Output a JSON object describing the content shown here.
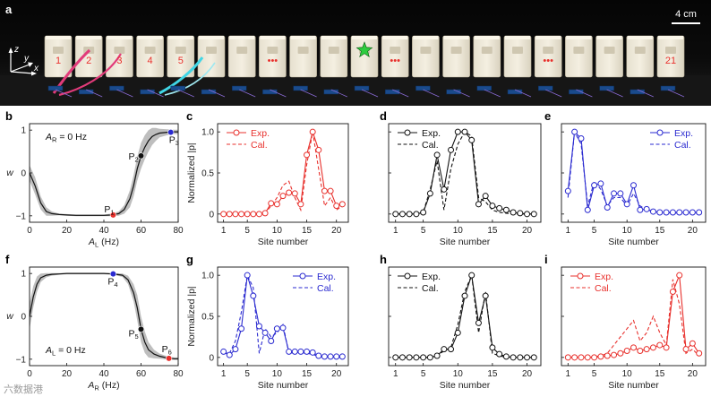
{
  "photo": {
    "panel_label": "a",
    "scale_label": "4 cm",
    "axis_z": "z",
    "axis_y": "y",
    "axis_x": "x",
    "block_labels": [
      "1",
      "2",
      "3",
      "4",
      "5",
      "•••",
      "•••",
      "•••",
      "21"
    ],
    "star_color": "#2ecc40"
  },
  "colors": {
    "red": "#e8302c",
    "blue": "#2a2ad0",
    "black": "#111111",
    "gray": "#b3b3b3"
  },
  "watermark": "六数据港",
  "chart_data": [
    {
      "id": "b",
      "type": "line",
      "label": "b",
      "xlabel_main": "A",
      "xlabel_sub": "L",
      "xlabel_unit": " (Hz)",
      "ylabel": "w",
      "xlim": [
        0,
        80
      ],
      "ylim": [
        -1.15,
        1.15
      ],
      "xticks": [
        "0",
        "20",
        "40",
        "60",
        "80"
      ],
      "xtick_values": [
        0,
        20,
        40,
        60,
        80
      ],
      "yticks": [
        "1",
        "0",
        "−1"
      ],
      "ytick_values": [
        1,
        0,
        -1
      ],
      "annotation_main": "A",
      "annotation_sub": "R",
      "annotation_tail": " = 0 Hz",
      "x": [
        0,
        3,
        6,
        9,
        12,
        16,
        20,
        25,
        30,
        35,
        40,
        44,
        48,
        51,
        54,
        56,
        58,
        60,
        62,
        64,
        66,
        68,
        70,
        74,
        78,
        80
      ],
      "y": [
        0,
        -0.3,
        -0.7,
        -0.9,
        -0.95,
        -0.97,
        -0.98,
        -0.99,
        -0.99,
        -0.99,
        -0.99,
        -0.98,
        -0.95,
        -0.85,
        -0.6,
        -0.3,
        0.1,
        0.4,
        0.6,
        0.75,
        0.85,
        0.9,
        0.93,
        0.95,
        0.96,
        0.96
      ],
      "band": [
        0.18,
        0.2,
        0.15,
        0.1,
        0.05,
        0.02,
        0.02,
        0.02,
        0.02,
        0.02,
        0.02,
        0.03,
        0.05,
        0.1,
        0.2,
        0.25,
        0.28,
        0.3,
        0.28,
        0.25,
        0.2,
        0.15,
        0.1,
        0.07,
        0.05,
        0.05
      ],
      "points": [
        {
          "name": "P",
          "sub": "1",
          "x": 45,
          "y": -0.98,
          "color": "red"
        },
        {
          "name": "P",
          "sub": "2",
          "x": 60,
          "y": 0.4,
          "color": "black"
        },
        {
          "name": "P",
          "sub": "3",
          "x": 76,
          "y": 0.95,
          "color": "blue"
        }
      ]
    },
    {
      "id": "f",
      "type": "line",
      "label": "f",
      "xlabel_main": "A",
      "xlabel_sub": "R",
      "xlabel_unit": " (Hz)",
      "ylabel": "w",
      "xlim": [
        0,
        80
      ],
      "ylim": [
        -1.15,
        1.15
      ],
      "xticks": [
        "0",
        "20",
        "40",
        "60",
        "80"
      ],
      "xtick_values": [
        0,
        20,
        40,
        60,
        80
      ],
      "yticks": [
        "1",
        "0",
        "−1"
      ],
      "ytick_values": [
        1,
        0,
        -1
      ],
      "annotation_main": "A",
      "annotation_sub": "L",
      "annotation_tail": " = 0 Hz",
      "x": [
        0,
        2,
        4,
        6,
        9,
        12,
        16,
        20,
        25,
        30,
        35,
        40,
        45,
        50,
        53,
        56,
        58,
        60,
        62,
        64,
        67,
        70,
        74,
        78,
        80
      ],
      "y": [
        0,
        0.45,
        0.75,
        0.9,
        0.96,
        0.98,
        0.99,
        1,
        1,
        1,
        1,
        1,
        0.99,
        0.96,
        0.85,
        0.55,
        0.2,
        -0.3,
        -0.6,
        -0.78,
        -0.88,
        -0.93,
        -0.97,
        -0.99,
        -0.99
      ],
      "band": [
        0.3,
        0.25,
        0.18,
        0.1,
        0.05,
        0.03,
        0.02,
        0.02,
        0.02,
        0.02,
        0.02,
        0.02,
        0.02,
        0.04,
        0.1,
        0.2,
        0.3,
        0.3,
        0.25,
        0.18,
        0.1,
        0.06,
        0.04,
        0.03,
        0.03
      ],
      "points": [
        {
          "name": "P",
          "sub": "4",
          "x": 45,
          "y": 0.99,
          "color": "blue"
        },
        {
          "name": "P",
          "sub": "5",
          "x": 60,
          "y": -0.3,
          "color": "black"
        },
        {
          "name": "P",
          "sub": "6",
          "x": 75,
          "y": -0.98,
          "color": "red"
        }
      ]
    },
    {
      "id": "c",
      "type": "line",
      "label": "c",
      "color": "red",
      "ylabel": "Normalized |p|",
      "show_ylabel": true,
      "show_yticks": true,
      "xlabel": "Site number",
      "legend_side": "left",
      "legend": [
        "Exp.",
        "Cal."
      ],
      "xlim": [
        0,
        22
      ],
      "ylim": [
        -0.1,
        1.1
      ],
      "xticks": [
        "1",
        "5",
        "10",
        "15",
        "20"
      ],
      "xtick_values": [
        1,
        5,
        10,
        15,
        20
      ],
      "yticks": [
        "1.0",
        "0.5",
        "0"
      ],
      "ytick_values": [
        1,
        0.5,
        0
      ],
      "x": [
        1,
        2,
        3,
        4,
        5,
        6,
        7,
        8,
        9,
        10,
        11,
        12,
        13,
        14,
        15,
        16,
        17,
        18,
        19,
        20,
        21
      ],
      "exp": [
        0,
        0,
        0,
        0,
        0,
        0,
        0,
        0.01,
        0.13,
        0.12,
        0.22,
        0.26,
        0.25,
        0.12,
        0.72,
        1.0,
        0.78,
        0.28,
        0.28,
        0.1,
        0.12
      ],
      "cal": [
        0,
        0,
        0,
        0,
        0,
        0,
        0,
        0.01,
        0.1,
        0.2,
        0.35,
        0.4,
        0.2,
        0.05,
        0.6,
        1.0,
        0.55,
        0.1,
        0.2,
        0.05,
        0.1
      ]
    },
    {
      "id": "d",
      "type": "line",
      "label": "d",
      "color": "black",
      "show_ylabel": false,
      "show_yticks": false,
      "xlabel": "Site number",
      "legend_side": "left",
      "legend": [
        "Exp.",
        "Cal."
      ],
      "xlim": [
        0,
        22
      ],
      "ylim": [
        -0.1,
        1.1
      ],
      "xticks": [
        "1",
        "5",
        "10",
        "15",
        "20"
      ],
      "xtick_values": [
        1,
        5,
        10,
        15,
        20
      ],
      "yticks": [
        "1.0",
        "0.5",
        "0"
      ],
      "ytick_values": [
        1,
        0.5,
        0
      ],
      "x": [
        1,
        2,
        3,
        4,
        5,
        6,
        7,
        8,
        9,
        10,
        11,
        12,
        13,
        14,
        15,
        16,
        17,
        18,
        19,
        20,
        21
      ],
      "exp": [
        0,
        0,
        0,
        0,
        0.02,
        0.25,
        0.72,
        0.3,
        0.78,
        1.0,
        1.0,
        0.9,
        0.12,
        0.22,
        0.1,
        0.07,
        0.05,
        0.02,
        0.01,
        0,
        0
      ],
      "cal": [
        0,
        0,
        0,
        0,
        0.02,
        0.3,
        0.65,
        0.05,
        0.55,
        0.85,
        1.0,
        0.95,
        0.2,
        0.15,
        0.05,
        0.02,
        0.01,
        0,
        0,
        0,
        0
      ]
    },
    {
      "id": "e",
      "type": "line",
      "label": "e",
      "color": "blue",
      "show_ylabel": false,
      "show_yticks": false,
      "xlabel": "Site number",
      "legend_side": "right",
      "legend": [
        "Exp.",
        "Cal."
      ],
      "xlim": [
        0,
        22
      ],
      "ylim": [
        -0.1,
        1.1
      ],
      "xticks": [
        "1",
        "5",
        "10",
        "15",
        "20"
      ],
      "xtick_values": [
        1,
        5,
        10,
        15,
        20
      ],
      "yticks": [
        "1.0",
        "0.5",
        "0"
      ],
      "ytick_values": [
        1,
        0.5,
        0
      ],
      "x": [
        1,
        2,
        3,
        4,
        5,
        6,
        7,
        8,
        9,
        10,
        11,
        12,
        13,
        14,
        15,
        16,
        17,
        18,
        19,
        20,
        21
      ],
      "exp": [
        0.28,
        1.0,
        0.92,
        0.05,
        0.35,
        0.37,
        0.08,
        0.25,
        0.25,
        0.12,
        0.35,
        0.05,
        0.06,
        0.03,
        0.02,
        0.02,
        0.02,
        0.02,
        0.02,
        0.02,
        0.02
      ],
      "cal": [
        0.2,
        1.0,
        0.85,
        0.1,
        0.4,
        0.3,
        0.1,
        0.2,
        0.2,
        0.1,
        0.25,
        0.1,
        0.05,
        0.03,
        0.02,
        0.02,
        0.01,
        0.01,
        0.01,
        0.01,
        0.01
      ]
    },
    {
      "id": "g",
      "type": "line",
      "label": "g",
      "color": "blue",
      "ylabel": "Normalized |p|",
      "show_ylabel": true,
      "show_yticks": true,
      "xlabel": "Site number",
      "legend_side": "right",
      "legend": [
        "Exp.",
        "Cal."
      ],
      "xlim": [
        0,
        22
      ],
      "ylim": [
        -0.1,
        1.1
      ],
      "xticks": [
        "1",
        "5",
        "10",
        "15",
        "20"
      ],
      "xtick_values": [
        1,
        5,
        10,
        15,
        20
      ],
      "yticks": [
        "1.0",
        "0.5",
        "0"
      ],
      "ytick_values": [
        1,
        0.5,
        0
      ],
      "x": [
        1,
        2,
        3,
        4,
        5,
        6,
        7,
        8,
        9,
        10,
        11,
        12,
        13,
        14,
        15,
        16,
        17,
        18,
        19,
        20,
        21
      ],
      "exp": [
        0.07,
        0.03,
        0.1,
        0.35,
        1.0,
        0.75,
        0.38,
        0.3,
        0.2,
        0.35,
        0.36,
        0.07,
        0.07,
        0.07,
        0.07,
        0.06,
        0.02,
        0.01,
        0.01,
        0.01,
        0.01
      ],
      "cal": [
        0.05,
        0.05,
        0.2,
        0.55,
        1.0,
        0.85,
        0.05,
        0.35,
        0.25,
        0.3,
        0.4,
        0.05,
        0.06,
        0.06,
        0.05,
        0.04,
        0.01,
        0.01,
        0,
        0,
        0
      ]
    },
    {
      "id": "h",
      "type": "line",
      "label": "h",
      "color": "black",
      "show_ylabel": false,
      "show_yticks": false,
      "xlabel": "Site number",
      "legend_side": "left",
      "legend": [
        "Exp.",
        "Cal."
      ],
      "xlim": [
        0,
        22
      ],
      "ylim": [
        -0.1,
        1.1
      ],
      "xticks": [
        "1",
        "5",
        "10",
        "15",
        "20"
      ],
      "xtick_values": [
        1,
        5,
        10,
        15,
        20
      ],
      "yticks": [
        "1.0",
        "0.5",
        "0"
      ],
      "ytick_values": [
        1,
        0.5,
        0
      ],
      "x": [
        1,
        2,
        3,
        4,
        5,
        6,
        7,
        8,
        9,
        10,
        11,
        12,
        13,
        14,
        15,
        16,
        17,
        18,
        19,
        20,
        21
      ],
      "exp": [
        0,
        0,
        0,
        0,
        0,
        0,
        0.02,
        0.1,
        0.1,
        0.3,
        0.75,
        1.0,
        0.42,
        0.75,
        0.12,
        0.04,
        0.01,
        0,
        0,
        0,
        0
      ],
      "cal": [
        0,
        0,
        0,
        0,
        0,
        0,
        0.02,
        0.08,
        0.12,
        0.4,
        0.8,
        1.0,
        0.3,
        0.8,
        0.05,
        0.02,
        0,
        0,
        0,
        0,
        0
      ]
    },
    {
      "id": "i",
      "type": "line",
      "label": "i",
      "color": "red",
      "show_ylabel": false,
      "show_yticks": false,
      "xlabel": "Site number",
      "legend_side": "left",
      "legend": [
        "Exp.",
        "Cal."
      ],
      "xlim": [
        0,
        22
      ],
      "ylim": [
        -0.1,
        1.1
      ],
      "xticks": [
        "1",
        "5",
        "10",
        "15",
        "20"
      ],
      "xtick_values": [
        1,
        5,
        10,
        15,
        20
      ],
      "yticks": [
        "1.0",
        "0.5",
        "0"
      ],
      "ytick_values": [
        1,
        0.5,
        0
      ],
      "x": [
        1,
        2,
        3,
        4,
        5,
        6,
        7,
        8,
        9,
        10,
        11,
        12,
        13,
        14,
        15,
        16,
        17,
        18,
        19,
        20,
        21
      ],
      "exp": [
        0,
        0,
        0,
        0,
        0,
        0.01,
        0.02,
        0.03,
        0.05,
        0.08,
        0.12,
        0.08,
        0.1,
        0.12,
        0.15,
        0.12,
        0.8,
        1.0,
        0.1,
        0.17,
        0.05
      ],
      "cal": [
        0,
        0,
        0,
        0,
        0.01,
        0.02,
        0.05,
        0.15,
        0.25,
        0.35,
        0.45,
        0.2,
        0.3,
        0.5,
        0.3,
        0.15,
        0.95,
        0.65,
        0.05,
        0.1,
        0.02
      ]
    }
  ]
}
